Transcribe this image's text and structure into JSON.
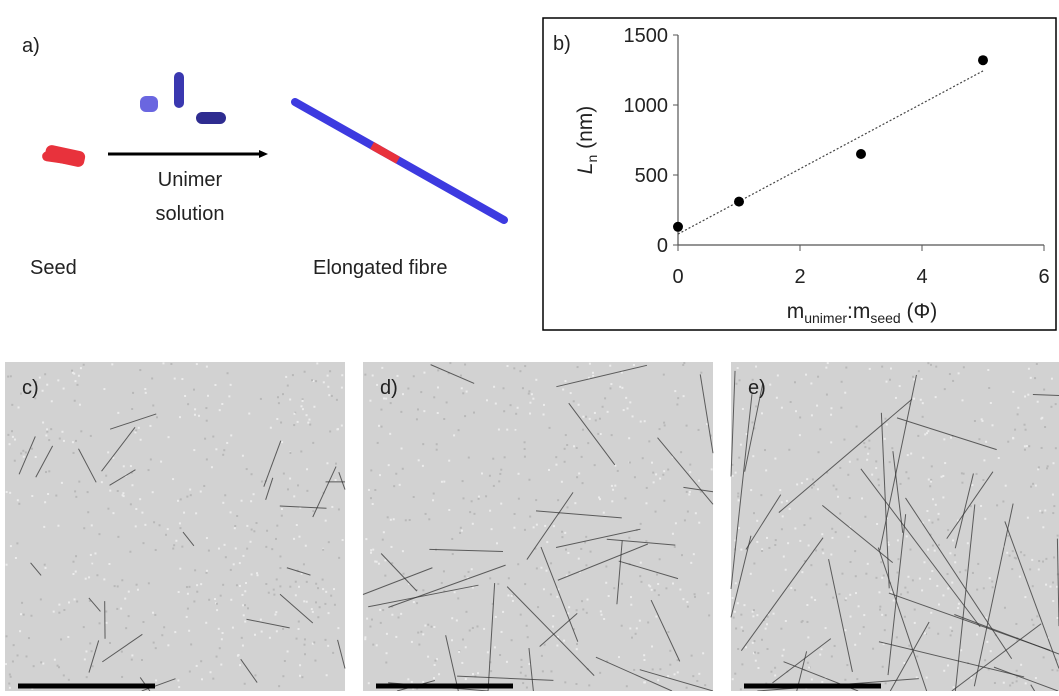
{
  "panel_a": {
    "label": "a)",
    "arrow_label": [
      "Unimer",
      "solution"
    ],
    "seed_label": "Seed",
    "fibre_label": "Elongated fibre"
  },
  "chart_data": {
    "type": "scatter",
    "label": "b)",
    "x": [
      0,
      1,
      3,
      5
    ],
    "values": [
      130,
      310,
      650,
      1320
    ],
    "color": "#000000",
    "xlim": [
      0,
      6
    ],
    "xticks": [
      0,
      2,
      4,
      6
    ],
    "ylim": [
      0,
      1500
    ],
    "yticks": [
      0,
      500,
      1000,
      1500
    ],
    "ylabel": [
      "L",
      "n",
      " (nm)"
    ],
    "xlabel": [
      "m",
      "unimer",
      ":m",
      "seed",
      " (Φ)"
    ],
    "trendline": "linear"
  },
  "micrographs": [
    {
      "label": "c)"
    },
    {
      "label": "d)"
    },
    {
      "label": "e)"
    }
  ]
}
